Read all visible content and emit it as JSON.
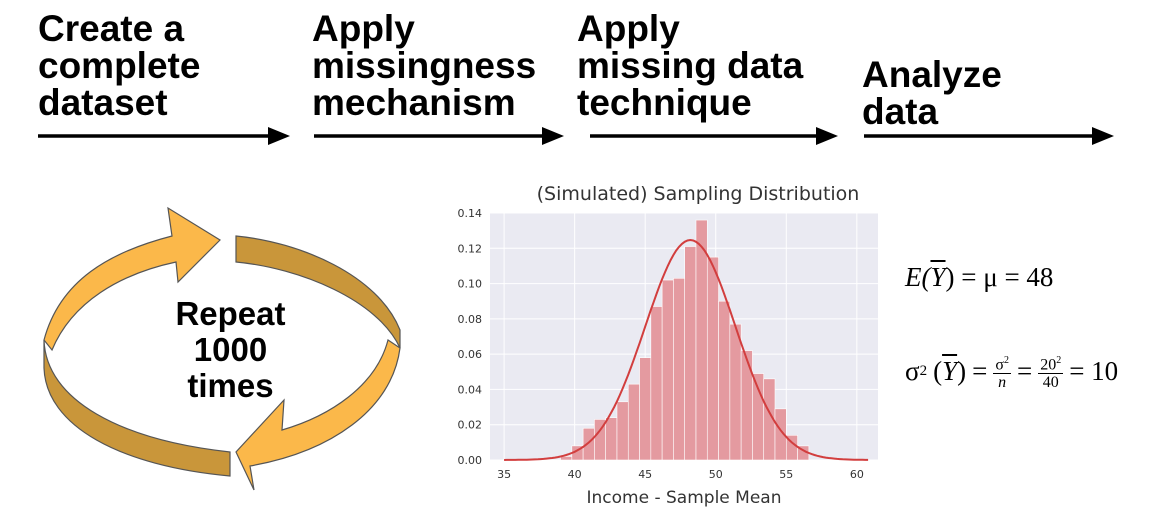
{
  "steps": [
    {
      "label": "Create a\ncomplete\ndataset"
    },
    {
      "label": "Apply\nmissingness\nmechanism"
    },
    {
      "label": "Apply\nmissing data\ntechnique"
    },
    {
      "label": "Analyze\ndata"
    }
  ],
  "cycle": {
    "label": "Repeat\n1000\ntimes",
    "colors": {
      "light": "#FBB84A",
      "dark": "#C9963A",
      "stroke": "#555555"
    }
  },
  "formulas": {
    "expectation": {
      "lhs": "E(",
      "var": "Y",
      "rhs": ") = μ = 48"
    },
    "variance": {
      "sigma": "σ",
      "exp": "2",
      "var": "Y",
      "sigma_num": "σ",
      "sigma_exp": "2",
      "n_den": "n",
      "num": "20",
      "num_exp": "2",
      "den": "40",
      "result": "= 10"
    }
  },
  "chart_data": {
    "type": "bar",
    "title": "(Simulated) Sampling Distribution",
    "xlabel": "Income - Sample Mean",
    "ylabel": "",
    "xlim": [
      34,
      61.5
    ],
    "ylim": [
      0,
      0.14
    ],
    "xticks": [
      35,
      40,
      45,
      50,
      55,
      60
    ],
    "yticks": [
      0.0,
      0.02,
      0.04,
      0.06,
      0.08,
      0.1,
      0.12,
      0.14
    ],
    "bin_width": 0.8,
    "bins_start": [
      39.0,
      39.8,
      40.6,
      41.4,
      42.2,
      43.0,
      43.8,
      44.6,
      45.4,
      46.2,
      47.0,
      47.8,
      48.6,
      49.4,
      50.2,
      51.0,
      51.8,
      52.6,
      53.4,
      54.2,
      55.0,
      55.8
    ],
    "values": [
      0.002,
      0.008,
      0.018,
      0.023,
      0.024,
      0.033,
      0.043,
      0.058,
      0.087,
      0.102,
      0.103,
      0.121,
      0.136,
      0.115,
      0.09,
      0.077,
      0.062,
      0.049,
      0.046,
      0.029,
      0.014,
      0.008
    ],
    "kde": {
      "mean": 48.2,
      "sd": 3.2
    },
    "colors": {
      "bar": "#E49AA0",
      "kde": "#D23E3E",
      "plot_bg": "#EAEAF2",
      "grid": "#FFFFFF"
    }
  }
}
